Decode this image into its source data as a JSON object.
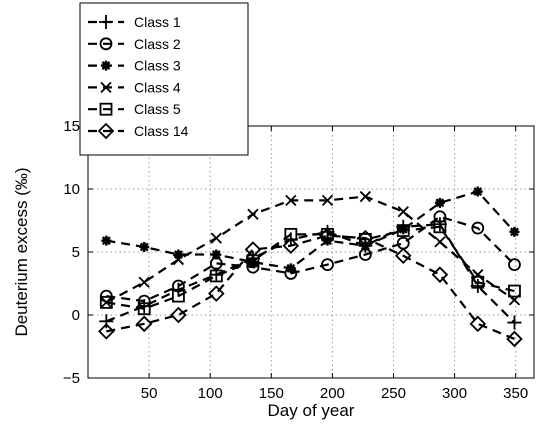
{
  "chart_data": {
    "type": "line",
    "title": "",
    "xlabel": "Day of year",
    "ylabel": "Deuterium excess (‰)",
    "xlim": [
      0,
      365
    ],
    "ylim": [
      -5,
      15
    ],
    "xticks": [
      50,
      100,
      150,
      200,
      250,
      300,
      350
    ],
    "yticks": [
      -5,
      0,
      5,
      10,
      15
    ],
    "grid": true,
    "legend_position": "top-left",
    "x": [
      15,
      46,
      74,
      105,
      135,
      166,
      196,
      227,
      258,
      288,
      319,
      349
    ],
    "series": [
      {
        "name": "Class 1",
        "marker": "plus",
        "values": [
          -0.5,
          0.7,
          2.0,
          3.2,
          4.5,
          6.0,
          6.6,
          5.5,
          7.0,
          7.2,
          2.3,
          -0.6
        ]
      },
      {
        "name": "Class 2",
        "marker": "circle",
        "values": [
          1.5,
          1.1,
          2.3,
          4.1,
          3.8,
          3.3,
          4.0,
          4.8,
          5.7,
          7.8,
          6.9,
          4.0
        ]
      },
      {
        "name": "Class 3",
        "marker": "star",
        "values": [
          5.9,
          5.4,
          4.8,
          4.8,
          4.2,
          3.7,
          5.9,
          5.5,
          6.8,
          8.9,
          9.8,
          6.6
        ]
      },
      {
        "name": "Class 4",
        "marker": "x",
        "values": [
          1.0,
          2.6,
          4.4,
          6.1,
          8.0,
          9.1,
          9.1,
          9.4,
          8.2,
          5.8,
          3.2,
          1.2
        ]
      },
      {
        "name": "Class 5",
        "marker": "square",
        "values": [
          1.0,
          0.5,
          1.5,
          3.1,
          4.3,
          6.4,
          6.4,
          6.0,
          6.7,
          7.0,
          2.6,
          1.9
        ]
      },
      {
        "name": "Class 14",
        "marker": "diamond",
        "values": [
          -1.3,
          -0.7,
          0.0,
          1.7,
          5.2,
          5.5,
          6.3,
          6.1,
          4.7,
          3.2,
          -0.7,
          -1.9
        ]
      }
    ]
  }
}
